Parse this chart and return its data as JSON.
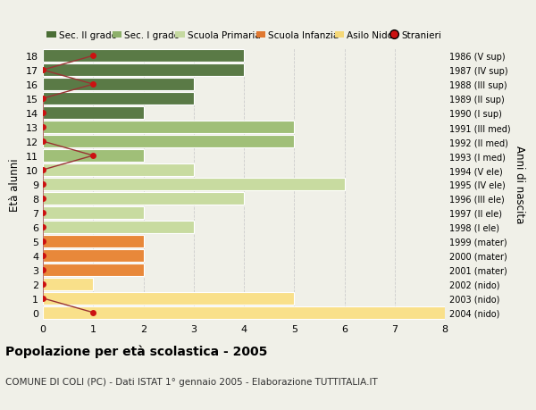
{
  "ages": [
    0,
    1,
    2,
    3,
    4,
    5,
    6,
    7,
    8,
    9,
    10,
    11,
    12,
    13,
    14,
    15,
    16,
    17,
    18
  ],
  "right_labels": [
    "2004 (nido)",
    "2003 (nido)",
    "2002 (nido)",
    "2001 (mater)",
    "2000 (mater)",
    "1999 (mater)",
    "1998 (I ele)",
    "1997 (II ele)",
    "1996 (III ele)",
    "1995 (IV ele)",
    "1994 (V ele)",
    "1993 (I med)",
    "1992 (II med)",
    "1991 (III med)",
    "1990 (I sup)",
    "1989 (II sup)",
    "1988 (III sup)",
    "1987 (IV sup)",
    "1986 (V sup)"
  ],
  "bar_values": [
    8,
    5,
    1,
    2,
    2,
    2,
    3,
    2,
    4,
    6,
    3,
    2,
    5,
    5,
    2,
    3,
    3,
    4,
    4
  ],
  "bar_colors": [
    "#f9e08a",
    "#f9e08a",
    "#f9e08a",
    "#e8883a",
    "#e8883a",
    "#e8883a",
    "#c8dba0",
    "#c8dba0",
    "#c8dba0",
    "#c8dba0",
    "#c8dba0",
    "#a0bf78",
    "#a0bf78",
    "#a0bf78",
    "#5a7a46",
    "#5a7a46",
    "#5a7a46",
    "#5a7a46",
    "#5a7a46"
  ],
  "stranieri_x": [
    1,
    0,
    0,
    0,
    0,
    0,
    0,
    0,
    0,
    0,
    0,
    1,
    0,
    0,
    0,
    0,
    1,
    0,
    1
  ],
  "legend_labels": [
    "Sec. II grado",
    "Sec. I grado",
    "Scuola Primaria",
    "Scuola Infanzia",
    "Asilo Nido",
    "Stranieri"
  ],
  "legend_colors": [
    "#4a6e35",
    "#8db06a",
    "#c5d9a0",
    "#e07830",
    "#f5d878",
    "#cc1111"
  ],
  "title": "Popolazione per età scolastica - 2005",
  "subtitle": "COMUNE DI COLI (PC) - Dati ISTAT 1° gennaio 2005 - Elaborazione TUTTITALIA.IT",
  "ylabel": "Età alunni",
  "right_ylabel": "Anni di nascita",
  "xlim": [
    0,
    8
  ],
  "background_color": "#f0f0e8",
  "bar_edge_color": "white",
  "grid_color": "#cccccc",
  "stranieri_line_color": "#993333",
  "stranieri_dot_color": "#cc1111"
}
